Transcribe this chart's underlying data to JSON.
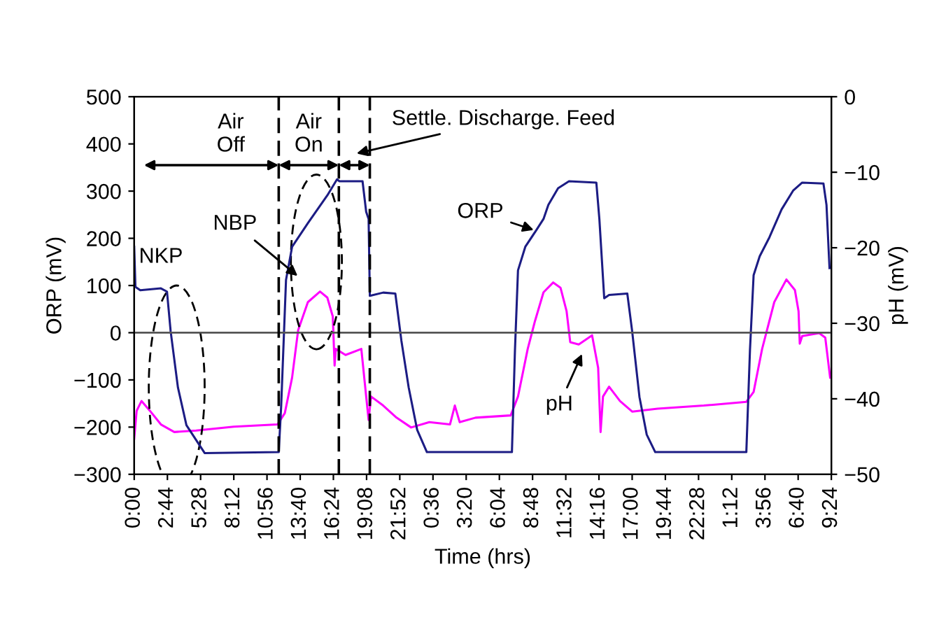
{
  "chart_data": {
    "type": "line",
    "xlabel": "Time (hrs)",
    "ylabel": "ORP (mV)",
    "y2label": "pH (mV)",
    "xlim": [
      "2000-01-01T00:00",
      "2000-01-03T09:24"
    ],
    "ylim": [
      -300,
      500
    ],
    "y2lim": [
      -50,
      0
    ],
    "xticks": [
      {
        "value": "2000-01-01T00:00",
        "label": "0:00"
      },
      {
        "value": "2000-01-01T02:44",
        "label": "2:44"
      },
      {
        "value": "2000-01-01T05:28",
        "label": "5:28"
      },
      {
        "value": "2000-01-01T08:12",
        "label": "8:12"
      },
      {
        "value": "2000-01-01T10:56",
        "label": "10:56"
      },
      {
        "value": "2000-01-01T13:40",
        "label": "13:40"
      },
      {
        "value": "2000-01-01T16:24",
        "label": "16:24"
      },
      {
        "value": "2000-01-01T19:08",
        "label": "19:08"
      },
      {
        "value": "2000-01-01T21:52",
        "label": "21:52"
      },
      {
        "value": "2000-01-02T00:36",
        "label": "0:36"
      },
      {
        "value": "2000-01-02T03:20",
        "label": "3:20"
      },
      {
        "value": "2000-01-02T06:04",
        "label": "6:04"
      },
      {
        "value": "2000-01-02T08:48",
        "label": "8:48"
      },
      {
        "value": "2000-01-02T11:32",
        "label": "11:32"
      },
      {
        "value": "2000-01-02T14:16",
        "label": "14:16"
      },
      {
        "value": "2000-01-02T17:00",
        "label": "17:00"
      },
      {
        "value": "2000-01-02T19:44",
        "label": "19:44"
      },
      {
        "value": "2000-01-02T22:28",
        "label": "22:28"
      },
      {
        "value": "2000-01-03T01:12",
        "label": "1:12"
      },
      {
        "value": "2000-01-03T03:56",
        "label": "3:56"
      },
      {
        "value": "2000-01-03T06:40",
        "label": "6:40"
      },
      {
        "value": "2000-01-03T09:24",
        "label": "9:24"
      }
    ],
    "yticks": [
      -300,
      -200,
      -100,
      0,
      100,
      200,
      300,
      400,
      500
    ],
    "y2ticks": [
      -50,
      -40,
      -30,
      -20,
      -10,
      0
    ],
    "grid": false,
    "legend": false,
    "line_style": "solid",
    "marker": "none",
    "series": [
      {
        "name": "ORP",
        "color": "#1c1c84",
        "x": [
          "2000-01-01T00:00",
          "2000-01-01T00:06",
          "2000-01-01T00:30",
          "2000-01-01T02:12",
          "2000-01-01T02:42",
          "2000-01-01T03:00",
          "2000-01-01T03:36",
          "2000-01-01T04:18",
          "2000-01-01T05:48",
          "2000-01-01T11:54",
          "2000-01-01T12:06",
          "2000-01-01T12:30",
          "2000-01-01T13:00",
          "2000-01-01T14:18",
          "2000-01-01T15:54",
          "2000-01-01T16:42",
          "2000-01-01T16:54",
          "2000-01-01T18:48",
          "2000-01-01T19:06",
          "2000-01-01T19:18",
          "2000-01-01T19:24",
          "2000-01-01T20:30",
          "2000-01-01T21:30",
          "2000-01-01T22:00",
          "2000-01-01T22:36",
          "2000-01-01T23:18",
          "2000-01-02T00:06",
          "2000-01-02T07:06",
          "2000-01-02T07:21",
          "2000-01-02T07:36",
          "2000-01-02T08:12",
          "2000-01-02T09:06",
          "2000-01-02T09:42",
          "2000-01-02T10:06",
          "2000-01-02T10:54",
          "2000-01-02T11:48",
          "2000-01-02T14:03",
          "2000-01-02T14:18",
          "2000-01-02T14:42",
          "2000-01-02T15:06",
          "2000-01-02T16:36",
          "2000-01-02T17:00",
          "2000-01-02T17:36",
          "2000-01-02T18:12",
          "2000-01-02T18:54",
          "2000-01-03T02:24",
          "2000-01-03T02:42",
          "2000-01-03T03:00",
          "2000-01-03T03:30",
          "2000-01-03T04:18",
          "2000-01-03T05:18",
          "2000-01-03T06:15",
          "2000-01-03T07:00",
          "2000-01-03T08:45",
          "2000-01-03T09:00",
          "2000-01-03T09:15"
        ],
        "values": [
          182,
          97,
          90,
          94,
          87,
          3,
          -116,
          -196,
          -255,
          -253,
          -156,
          112,
          182,
          232,
          291,
          325,
          321,
          321,
          256,
          241,
          78,
          85,
          83,
          -17,
          -116,
          -206,
          -253,
          -253,
          -37,
          132,
          182,
          217,
          241,
          271,
          306,
          321,
          318,
          241,
          73,
          80,
          83,
          3,
          -136,
          -216,
          -253,
          -253,
          -37,
          122,
          162,
          202,
          261,
          301,
          318,
          316,
          271,
          137
        ]
      },
      {
        "name": "pH",
        "color": "#ff00ff",
        "axis": "y2",
        "x": [
          "2000-01-01T00:00",
          "2000-01-01T00:12",
          "2000-01-01T00:36",
          "2000-01-01T01:18",
          "2000-01-01T02:12",
          "2000-01-01T03:18",
          "2000-01-01T05:06",
          "2000-01-01T08:12",
          "2000-01-01T11:48",
          "2000-01-01T12:24",
          "2000-01-01T13:00",
          "2000-01-01T13:30",
          "2000-01-01T14:18",
          "2000-01-01T15:18",
          "2000-01-01T15:54",
          "2000-01-01T16:21",
          "2000-01-01T16:30",
          "2000-01-01T16:36",
          "2000-01-01T17:24",
          "2000-01-01T18:42",
          "2000-01-01T19:06",
          "2000-01-01T19:18",
          "2000-01-01T19:30",
          "2000-01-01T20:30",
          "2000-01-01T21:36",
          "2000-01-01T22:48",
          "2000-01-02T00:18",
          "2000-01-02T02:00",
          "2000-01-02T02:24",
          "2000-01-02T02:48",
          "2000-01-02T04:06",
          "2000-01-02T07:00",
          "2000-01-02T07:36",
          "2000-01-02T08:24",
          "2000-01-02T09:00",
          "2000-01-02T09:42",
          "2000-01-02T10:30",
          "2000-01-02T11:06",
          "2000-01-02T11:36",
          "2000-01-02T11:54",
          "2000-01-02T12:36",
          "2000-01-02T13:42",
          "2000-01-02T14:12",
          "2000-01-02T14:24",
          "2000-01-02T14:36",
          "2000-01-02T15:06",
          "2000-01-02T16:00",
          "2000-01-02T17:00",
          "2000-01-02T19:06",
          "2000-01-02T22:54",
          "2000-01-03T02:24",
          "2000-01-03T03:00",
          "2000-01-03T03:42",
          "2000-01-03T04:42",
          "2000-01-03T05:42",
          "2000-01-03T06:24",
          "2000-01-03T06:42",
          "2000-01-03T06:48",
          "2000-01-03T07:00",
          "2000-01-03T08:24",
          "2000-01-03T08:54",
          "2000-01-03T09:18"
        ],
        "values": [
          -45.3,
          -41.6,
          -40.3,
          -41.6,
          -43.4,
          -44.4,
          -44.2,
          -43.7,
          -43.4,
          -41.9,
          -37.2,
          -30.9,
          -27.2,
          -25.8,
          -26.6,
          -29.1,
          -35.6,
          -33.4,
          -34.2,
          -33.4,
          -39.7,
          -42.8,
          -39.7,
          -40.9,
          -42.5,
          -43.8,
          -43.1,
          -43.4,
          -40.9,
          -43.1,
          -42.5,
          -42.2,
          -39.7,
          -33.4,
          -29.7,
          -25.9,
          -24.6,
          -25.3,
          -28.4,
          -32.5,
          -32.8,
          -31.6,
          -35.9,
          -44.4,
          -39.7,
          -38.4,
          -40.3,
          -41.7,
          -41.3,
          -40.9,
          -40.4,
          -39.1,
          -33.4,
          -27.2,
          -24.2,
          -25.6,
          -28.4,
          -32.7,
          -31.7,
          -31.3,
          -31.9,
          -37.2
        ]
      }
    ],
    "ref_lines": [
      {
        "axis": "y",
        "value": 0,
        "color": "#555555",
        "line_style": "solid"
      },
      {
        "axis": "x",
        "value": "2000-01-01T11:54",
        "color": "#000000",
        "line_style": "dashed"
      },
      {
        "axis": "x",
        "value": "2000-01-01T16:51",
        "color": "#000000",
        "line_style": "dashed"
      },
      {
        "axis": "x",
        "value": "2000-01-01T19:24",
        "color": "#000000",
        "line_style": "dashed"
      }
    ],
    "annotations": [
      "Air\nOff",
      "Air\nOn",
      "Settle. Discharge. Feed",
      "NKP",
      "NBP"
    ]
  }
}
